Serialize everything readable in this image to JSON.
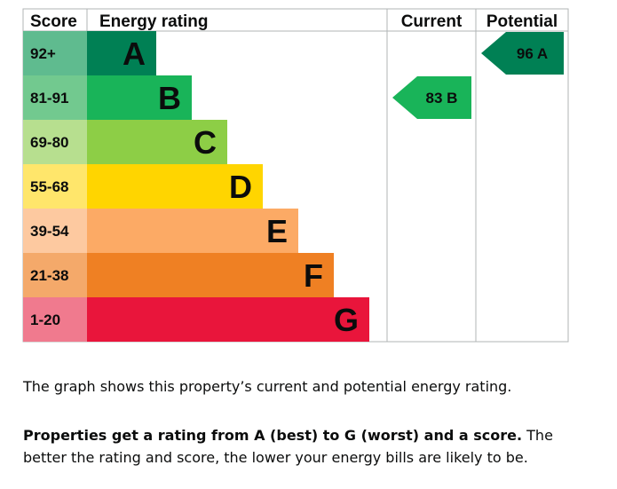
{
  "chart_data": {
    "type": "bar",
    "headers": {
      "score": "Score",
      "rating": "Energy rating",
      "current": "Current",
      "potential": "Potential"
    },
    "bands": [
      {
        "score": "92+",
        "letter": "A",
        "color": "#008054",
        "score_bg": "#5fbb8f"
      },
      {
        "score": "81-91",
        "letter": "B",
        "color": "#19b459",
        "score_bg": "#72c98f"
      },
      {
        "score": "69-80",
        "letter": "C",
        "color": "#8dce46",
        "score_bg": "#b7df8f"
      },
      {
        "score": "55-68",
        "letter": "D",
        "color": "#ffd500",
        "score_bg": "#ffe66b"
      },
      {
        "score": "39-54",
        "letter": "E",
        "color": "#fcaa65",
        "score_bg": "#fdc9a0"
      },
      {
        "score": "21-38",
        "letter": "F",
        "color": "#ef8023",
        "score_bg": "#f4a96a"
      },
      {
        "score": "1-20",
        "letter": "G",
        "color": "#e9153b",
        "score_bg": "#f07a8e"
      }
    ],
    "current": {
      "value": 83,
      "letter": "B",
      "label": "83  B",
      "color": "#19b459"
    },
    "potential": {
      "value": 96,
      "letter": "A",
      "label": "96  A",
      "color": "#008054"
    }
  },
  "text": {
    "graph_note": "The graph shows this property’s current and potential energy rating.",
    "rating_bold": "Properties get a rating from A (best) to G (worst) and a score.",
    "rating_rest": " The better the rating and score, the lower your energy bills are likely to be."
  }
}
